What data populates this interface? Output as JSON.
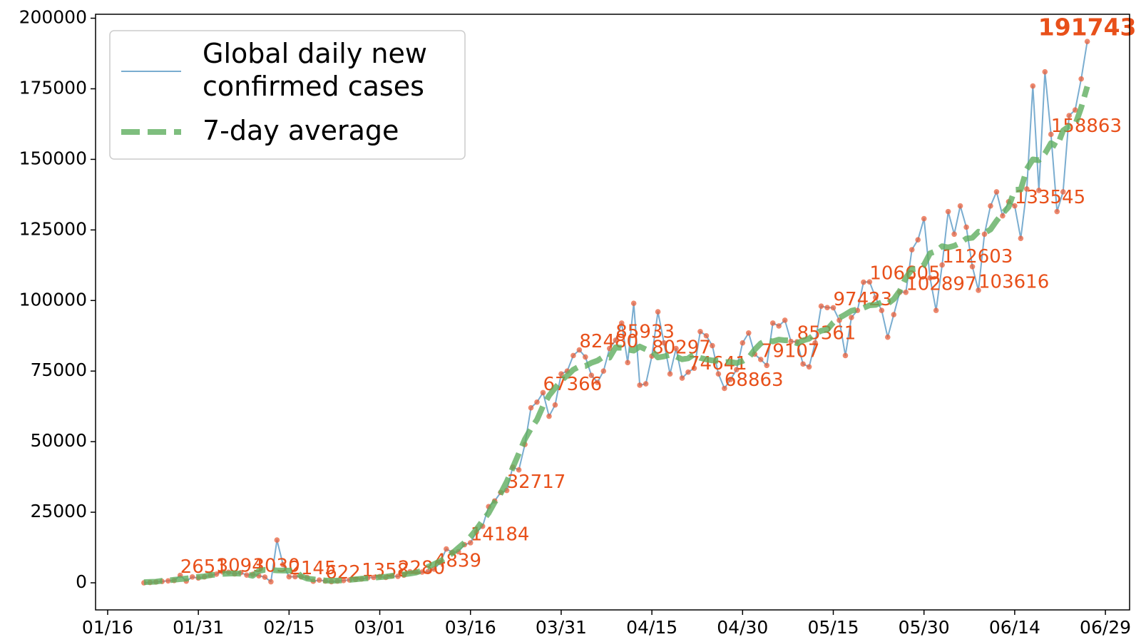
{
  "chart_data": {
    "type": "line",
    "x": [
      "01/22",
      "01/23",
      "01/24",
      "01/25",
      "01/26",
      "01/27",
      "01/28",
      "01/29",
      "01/30",
      "01/31",
      "02/01",
      "02/02",
      "02/03",
      "02/04",
      "02/05",
      "02/06",
      "02/07",
      "02/08",
      "02/09",
      "02/10",
      "02/11",
      "02/12",
      "02/13",
      "02/14",
      "02/15",
      "02/16",
      "02/17",
      "02/18",
      "02/19",
      "02/20",
      "02/21",
      "02/22",
      "02/23",
      "02/24",
      "02/25",
      "02/26",
      "02/27",
      "02/28",
      "02/29",
      "03/01",
      "03/02",
      "03/03",
      "03/04",
      "03/05",
      "03/06",
      "03/07",
      "03/08",
      "03/09",
      "03/10",
      "03/11",
      "03/12",
      "03/13",
      "03/14",
      "03/15",
      "03/16",
      "03/17",
      "03/18",
      "03/19",
      "03/20",
      "03/21",
      "03/22",
      "03/23",
      "03/24",
      "03/25",
      "03/26",
      "03/27",
      "03/28",
      "03/29",
      "03/30",
      "03/31",
      "04/01",
      "04/02",
      "04/03",
      "04/04",
      "04/05",
      "04/06",
      "04/07",
      "04/08",
      "04/09",
      "04/10",
      "04/11",
      "04/12",
      "04/13",
      "04/14",
      "04/15",
      "04/16",
      "04/17",
      "04/18",
      "04/19",
      "04/20",
      "04/21",
      "04/22",
      "04/23",
      "04/24",
      "04/25",
      "04/26",
      "04/27",
      "04/28",
      "04/29",
      "04/30",
      "05/01",
      "05/02",
      "05/03",
      "05/04",
      "05/05",
      "05/06",
      "05/07",
      "05/08",
      "05/09",
      "05/10",
      "05/11",
      "05/12",
      "05/13",
      "05/14",
      "05/15",
      "05/16",
      "05/17",
      "05/18",
      "05/19",
      "05/20",
      "05/21",
      "05/22",
      "05/23",
      "05/24",
      "05/25",
      "05/26",
      "05/27",
      "05/28",
      "05/29",
      "05/30",
      "05/31",
      "06/01",
      "06/02",
      "06/03",
      "06/04",
      "06/05",
      "06/06",
      "06/07",
      "06/08",
      "06/09",
      "06/10",
      "06/11",
      "06/12",
      "06/13",
      "06/14",
      "06/15",
      "06/16",
      "06/17",
      "06/18",
      "06/19",
      "06/20",
      "06/21",
      "06/22",
      "06/23",
      "06/24",
      "06/25",
      "06/26"
    ],
    "series": [
      {
        "name": "Global daily new\nconfirmed cases",
        "color": "#7aadd0",
        "marker_color": "#e8603c",
        "values": [
          0,
          98,
          287,
          493,
          684,
          809,
          2651,
          588,
          2068,
          1693,
          2111,
          2604,
          3094,
          3860,
          3739,
          3160,
          3597,
          2729,
          3030,
          2491,
          2006,
          373,
          15136,
          6463,
          2145,
          2156,
          2108,
          1872,
          554,
          958,
          622,
          400,
          600,
          800,
          1000,
          1200,
          1358,
          1800,
          1900,
          2200,
          1900,
          2400,
          2280,
          2700,
          3900,
          3900,
          3800,
          4000,
          4839,
          7200,
          12000,
          10800,
          11000,
          13500,
          14184,
          18000,
          20000,
          27000,
          29000,
          32000,
          32717,
          41000,
          40000,
          49000,
          62000,
          64000,
          67366,
          59000,
          63000,
          74000,
          75000,
          80500,
          82480,
          80000,
          73500,
          71000,
          75000,
          83000,
          85933,
          92000,
          78000,
          99000,
          70000,
          70500,
          80297,
          96000,
          85000,
          74000,
          83000,
          72500,
          74641,
          76000,
          89000,
          87500,
          84000,
          74000,
          68863,
          72000,
          75500,
          85000,
          88500,
          81000,
          79107,
          77000,
          92000,
          91000,
          93000,
          85500,
          85361,
          77500,
          76500,
          85000,
          98000,
          97500,
          97423,
          93000,
          80500,
          94000,
          96500,
          106500,
          106605,
          101000,
          96500,
          87000,
          95000,
          103000,
          102897,
          118000,
          121500,
          129000,
          108000,
          96500,
          112603,
          131500,
          123500,
          133500,
          126000,
          112000,
          103616,
          123500,
          133500,
          138500,
          130000,
          135000,
          133545,
          122000,
          139500,
          176000,
          139000,
          181000,
          158863,
          131500,
          138500,
          165500,
          167500,
          178500,
          191743
        ],
        "value_labels": [
          null,
          null,
          null,
          null,
          null,
          null,
          "2651",
          null,
          null,
          null,
          null,
          null,
          "3094",
          null,
          null,
          null,
          null,
          null,
          "3030",
          null,
          null,
          null,
          null,
          null,
          "2145",
          null,
          null,
          null,
          null,
          null,
          "622",
          null,
          null,
          null,
          null,
          null,
          "1358",
          null,
          null,
          null,
          null,
          null,
          "2280",
          null,
          null,
          null,
          null,
          null,
          "4839",
          null,
          null,
          null,
          null,
          null,
          "14184",
          null,
          null,
          null,
          null,
          null,
          "32717",
          null,
          null,
          null,
          null,
          null,
          "67366",
          null,
          null,
          null,
          null,
          null,
          "82480",
          null,
          null,
          null,
          null,
          null,
          "85933",
          null,
          null,
          null,
          null,
          null,
          "80297",
          null,
          null,
          null,
          null,
          null,
          "74641",
          null,
          null,
          null,
          null,
          null,
          "68863",
          null,
          null,
          null,
          null,
          null,
          "79107",
          null,
          null,
          null,
          null,
          null,
          "85361",
          null,
          null,
          null,
          null,
          null,
          "97423",
          null,
          null,
          null,
          null,
          null,
          "106605",
          null,
          null,
          null,
          null,
          null,
          "102897",
          null,
          null,
          null,
          null,
          null,
          "112603",
          null,
          null,
          null,
          null,
          null,
          "103616",
          null,
          null,
          null,
          null,
          null,
          "133545",
          null,
          null,
          null,
          null,
          null,
          "158863",
          null,
          null,
          null,
          null,
          null,
          "191743"
        ]
      },
      {
        "name": "7-day average",
        "color": "#5fae5f",
        "dashed": true,
        "values": [
          220,
          312,
          395,
          717,
          801,
          1083,
          1284,
          1515,
          1789,
          2116,
          2288,
          2738,
          2894,
          3166,
          3255,
          3316,
          3229,
          2965,
          2484,
          4195,
          4604,
          4521,
          4396,
          4341,
          4322,
          4348,
          2322,
          1488,
          1239,
          1016,
          829,
          705,
          797,
          854,
          1023,
          1237,
          1465,
          1623,
          1823,
          1977,
          2169,
          2469,
          2754,
          2983,
          3283,
          3631,
          4334,
          5663,
          6648,
          7663,
          9048,
          10503,
          12383,
          14212,
          16355,
          18955,
          21955,
          24700,
          28531,
          31674,
          35817,
          40817,
          45817,
          50869,
          54624,
          57767,
          62624,
          66338,
          68981,
          71621,
          73426,
          75497,
          76640,
          76783,
          77926,
          78702,
          80062,
          79776,
          83419,
          83276,
          82633,
          82247,
          83685,
          82685,
          82114,
          79828,
          80185,
          80777,
          80163,
          79163,
          79520,
          80949,
          79663,
          79143,
          78766,
          78695,
          78123,
          78266,
          77838,
          78567,
          79730,
          82587,
          84801,
          85944,
          85515,
          86138,
          85909,
          85837,
          84837,
          85837,
          86480,
          88183,
          89275,
          89703,
          92203,
          93846,
          95060,
          96361,
          96872,
          97372,
          98301,
          98444,
          99372,
          98857,
          100485,
          103414,
          108057,
          111057,
          111271,
          112643,
          116729,
          117515,
          119229,
          118800,
          119372,
          120388,
          121945,
          122231,
          124374,
          123874,
          125159,
          128237,
          130864,
          133149,
          139221,
          139292,
          146578,
          149987,
          149695,
          152052,
          155766,
          154552,
          160195,
          161729,
          162207,
          168349,
          175811
        ]
      }
    ],
    "xlim": [
      "01/14",
      "07/03"
    ],
    "xticks": [
      "01/16",
      "01/31",
      "02/15",
      "03/01",
      "03/16",
      "03/31",
      "04/15",
      "04/30",
      "05/15",
      "05/30",
      "06/14",
      "06/29"
    ],
    "ylim": [
      -9600,
      201400
    ],
    "yticks": [
      0,
      25000,
      50000,
      75000,
      100000,
      125000,
      150000,
      175000,
      200000
    ],
    "label_color": "#e8501a",
    "grid": false,
    "legend": "upper left"
  }
}
